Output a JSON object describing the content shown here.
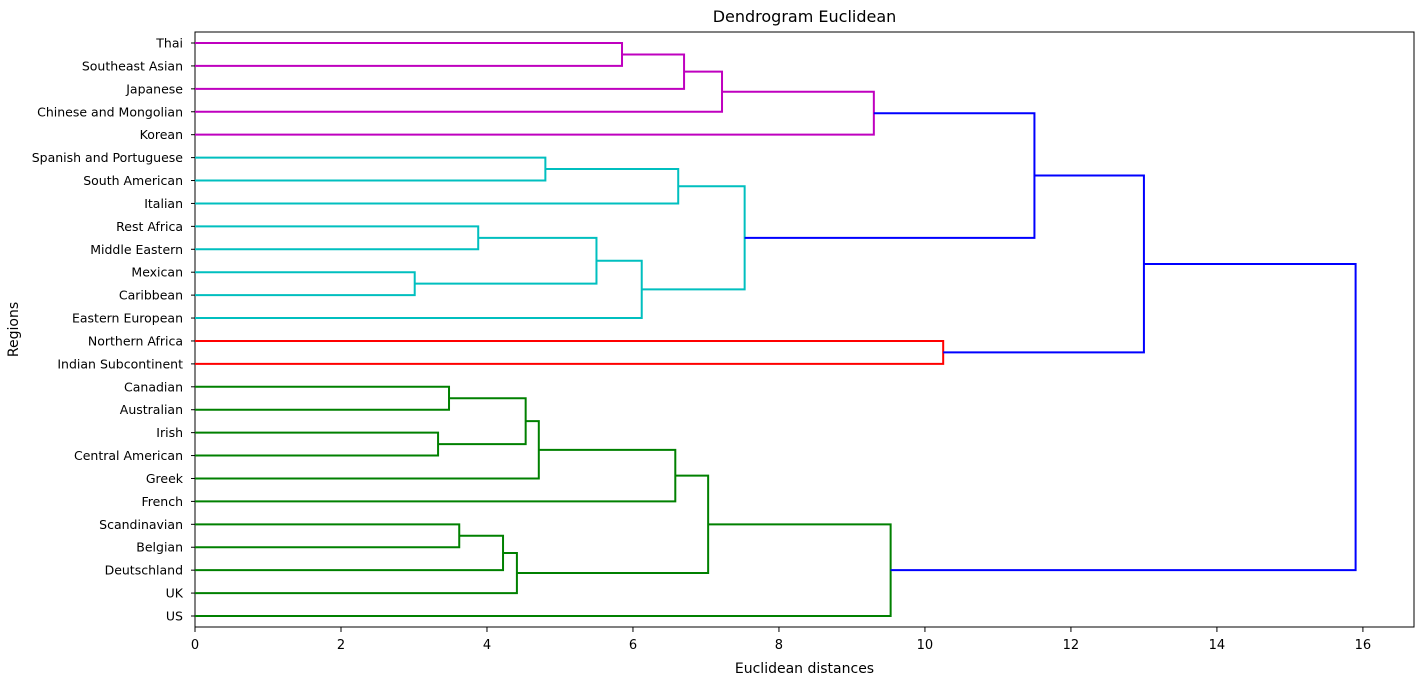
{
  "chart_data": {
    "type": "dendrogram",
    "title": "Dendrogram Euclidean",
    "xlabel": "Euclidean distances",
    "ylabel": "Regions",
    "xlim": [
      0,
      16.7
    ],
    "xticks": [
      0,
      2,
      4,
      6,
      8,
      10,
      12,
      14,
      16
    ],
    "grid": false,
    "orientation": "horizontal",
    "colors": {
      "magenta": "#bf00bf",
      "cyan": "#00bfbf",
      "red": "#ff0000",
      "green": "#008000",
      "blue": "#0000ff"
    },
    "leaves": [
      "Thai",
      "Southeast Asian",
      "Japanese",
      "Chinese and Mongolian",
      "Korean",
      "Spanish and Portuguese",
      "South American",
      "Italian",
      "Rest Africa",
      "Middle Eastern",
      "Mexican",
      "Caribbean",
      "Eastern European",
      "Northern Africa",
      "Indian Subcontinent",
      "Canadian",
      "Australian",
      "Irish",
      "Central American",
      "Greek",
      "French",
      "Scandinavian",
      "Belgian",
      "Deutschland",
      "UK",
      "US"
    ],
    "merges": [
      {
        "id": "n1",
        "left": "Thai",
        "right": "Southeast Asian",
        "distance": 5.85,
        "color": "magenta"
      },
      {
        "id": "n2",
        "left": "n1",
        "right": "Japanese",
        "distance": 6.7,
        "color": "magenta"
      },
      {
        "id": "n3",
        "left": "n2",
        "right": "Chinese and Mongolian",
        "distance": 7.22,
        "color": "magenta"
      },
      {
        "id": "n4",
        "left": "n3",
        "right": "Korean",
        "distance": 9.3,
        "color": "magenta"
      },
      {
        "id": "n5",
        "left": "Spanish and Portuguese",
        "right": "South American",
        "distance": 4.8,
        "color": "cyan"
      },
      {
        "id": "n6",
        "left": "n5",
        "right": "Italian",
        "distance": 6.62,
        "color": "cyan"
      },
      {
        "id": "n7",
        "left": "Rest Africa",
        "right": "Middle Eastern",
        "distance": 3.88,
        "color": "cyan"
      },
      {
        "id": "n8",
        "left": "Mexican",
        "right": "Caribbean",
        "distance": 3.01,
        "color": "cyan"
      },
      {
        "id": "n9",
        "left": "n7",
        "right": "n8",
        "distance": 5.5,
        "color": "cyan"
      },
      {
        "id": "n10",
        "left": "n9",
        "right": "Eastern European",
        "distance": 6.12,
        "color": "cyan"
      },
      {
        "id": "n11",
        "left": "n6",
        "right": "n10",
        "distance": 7.53,
        "color": "cyan"
      },
      {
        "id": "n12",
        "left": "n4",
        "right": "n11",
        "distance": 11.5,
        "color": "blue"
      },
      {
        "id": "n13",
        "left": "Northern Africa",
        "right": "Indian Subcontinent",
        "distance": 10.25,
        "color": "red"
      },
      {
        "id": "n14",
        "left": "n12",
        "right": "n13",
        "distance": 13.0,
        "color": "blue"
      },
      {
        "id": "n15",
        "left": "Canadian",
        "right": "Australian",
        "distance": 3.48,
        "color": "green"
      },
      {
        "id": "n16",
        "left": "Irish",
        "right": "Central American",
        "distance": 3.33,
        "color": "green"
      },
      {
        "id": "n17",
        "left": "n15",
        "right": "n16",
        "distance": 4.53,
        "color": "green"
      },
      {
        "id": "n18",
        "left": "n17",
        "right": "Greek",
        "distance": 4.71,
        "color": "green"
      },
      {
        "id": "n19",
        "left": "n18",
        "right": "French",
        "distance": 6.58,
        "color": "green"
      },
      {
        "id": "n20",
        "left": "Scandinavian",
        "right": "Belgian",
        "distance": 3.62,
        "color": "green"
      },
      {
        "id": "n21",
        "left": "n20",
        "right": "Deutschland",
        "distance": 4.22,
        "color": "green"
      },
      {
        "id": "n22",
        "left": "n21",
        "right": "UK",
        "distance": 4.41,
        "color": "green"
      },
      {
        "id": "n23",
        "left": "n19",
        "right": "n22",
        "distance": 7.03,
        "color": "green"
      },
      {
        "id": "n24",
        "left": "n23",
        "right": "US",
        "distance": 9.53,
        "color": "green"
      },
      {
        "id": "n25",
        "left": "n14",
        "right": "n24",
        "distance": 15.9,
        "color": "blue"
      }
    ]
  }
}
